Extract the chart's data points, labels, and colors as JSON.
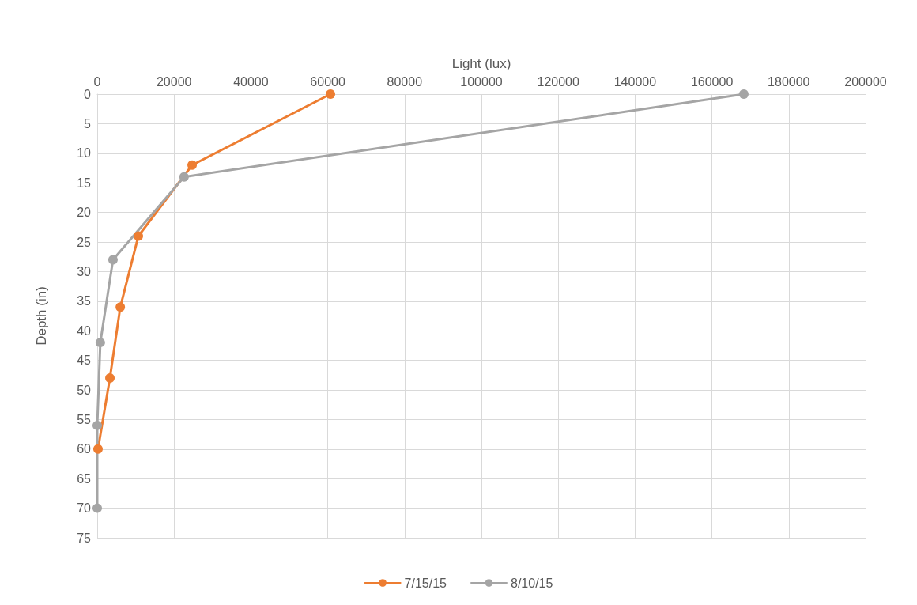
{
  "chart_data": {
    "type": "line",
    "xlabel": "Light (lux)",
    "ylabel": "Depth (in)",
    "xlim": [
      0,
      200000
    ],
    "xticks": [
      0,
      20000,
      40000,
      60000,
      80000,
      100000,
      120000,
      140000,
      160000,
      180000,
      200000
    ],
    "ylim": [
      75,
      0
    ],
    "yticks": [
      0,
      5,
      10,
      15,
      20,
      25,
      30,
      35,
      40,
      45,
      50,
      55,
      60,
      65,
      70,
      75
    ],
    "grid": true,
    "legend": "bottom",
    "marker": "circle",
    "line_style": "solid",
    "series": [
      {
        "name": "7/15/15",
        "color": "#ed7d31",
        "x": [
          60700,
          24700,
          10700,
          6000,
          3300,
          200
        ],
        "values": [
          0,
          12,
          24,
          36,
          48,
          60
        ]
      },
      {
        "name": "8/10/15",
        "color": "#a5a5a5",
        "x": [
          168300,
          22600,
          4100,
          800,
          0,
          0
        ],
        "values": [
          0,
          14,
          28,
          42,
          56,
          70
        ]
      }
    ]
  }
}
